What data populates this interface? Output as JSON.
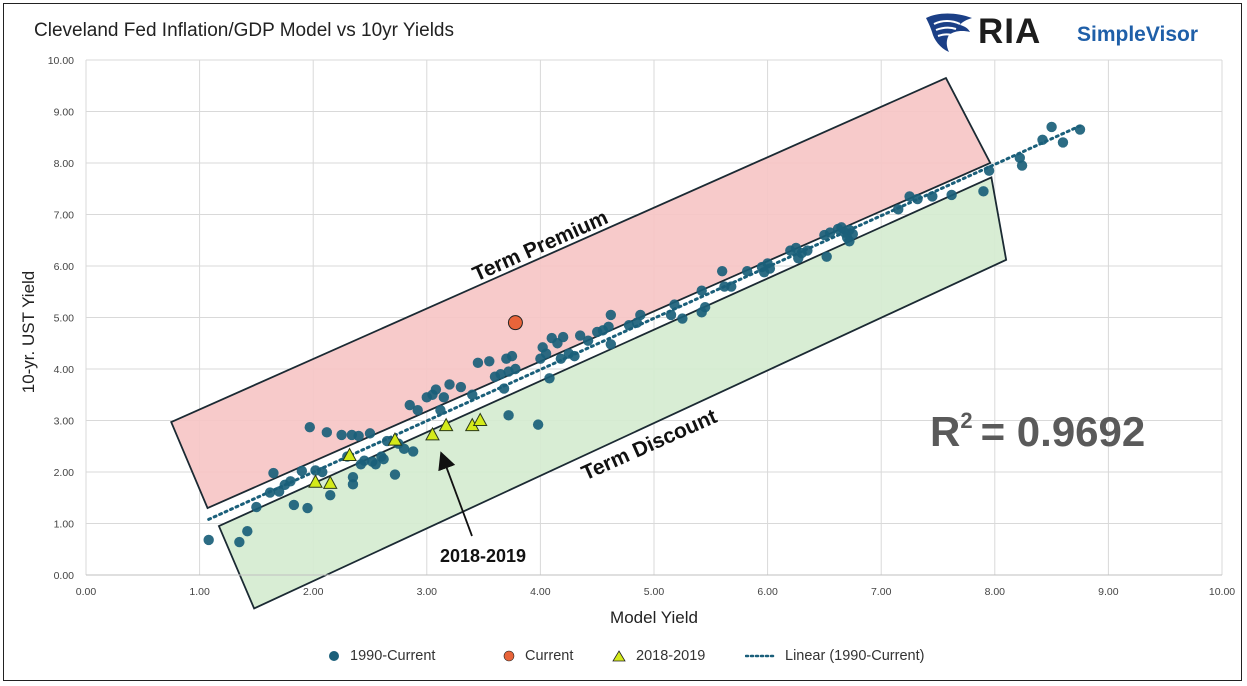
{
  "title": "Cleveland Fed Inflation/GDP Model vs 10yr Yields",
  "logo": {
    "primary": "RIA",
    "secondary": "SimpleVisor"
  },
  "colors": {
    "series_1990": "#1a5f7a",
    "current": "#e8643a",
    "series_2018": "#d4ea1a",
    "trend": "#1a5f7a",
    "term_premium_fill": "#f6c6c6",
    "term_discount_fill": "#d5ecd0",
    "zone_stroke": "#1b2a33",
    "grid": "#d9d9d9"
  },
  "annotations": {
    "term_premium": "Term Premium",
    "term_discount": "Term Discount",
    "period_label": "2018-2019",
    "r2_prefix": "R",
    "r2_exp": "2",
    "r2_value": "= 0.9692"
  },
  "chart_data": {
    "type": "scatter",
    "xlabel": "Model Yield",
    "ylabel": "10-yr. UST Yield",
    "xlim": [
      0,
      10
    ],
    "ylim": [
      0,
      10
    ],
    "x_ticks": [
      "0.00",
      "1.00",
      "2.00",
      "3.00",
      "4.00",
      "5.00",
      "6.00",
      "7.00",
      "8.00",
      "9.00",
      "10.00"
    ],
    "y_ticks": [
      "0.00",
      "1.00",
      "2.00",
      "3.00",
      "4.00",
      "5.00",
      "6.00",
      "7.00",
      "8.00",
      "9.00",
      "10.00"
    ],
    "grid": true,
    "legend_position": "bottom",
    "series": [
      {
        "name": "1990-Current",
        "marker": "circle",
        "points": [
          [
            1.08,
            0.68
          ],
          [
            1.35,
            0.64
          ],
          [
            1.42,
            0.85
          ],
          [
            1.5,
            1.32
          ],
          [
            1.62,
            1.6
          ],
          [
            1.65,
            1.98
          ],
          [
            1.7,
            1.62
          ],
          [
            1.75,
            1.75
          ],
          [
            1.8,
            1.82
          ],
          [
            1.83,
            1.36
          ],
          [
            1.9,
            2.02
          ],
          [
            1.95,
            1.3
          ],
          [
            1.97,
            2.87
          ],
          [
            2.02,
            2.03
          ],
          [
            2.08,
            2.0
          ],
          [
            2.12,
            2.77
          ],
          [
            2.15,
            1.55
          ],
          [
            2.25,
            2.72
          ],
          [
            2.3,
            2.3
          ],
          [
            2.34,
            2.72
          ],
          [
            2.35,
            1.76
          ],
          [
            2.35,
            1.9
          ],
          [
            2.4,
            2.7
          ],
          [
            2.42,
            2.15
          ],
          [
            2.45,
            2.22
          ],
          [
            2.5,
            2.75
          ],
          [
            2.52,
            2.2
          ],
          [
            2.55,
            2.15
          ],
          [
            2.6,
            2.3
          ],
          [
            2.62,
            2.25
          ],
          [
            2.65,
            2.6
          ],
          [
            2.72,
            1.95
          ],
          [
            2.75,
            2.55
          ],
          [
            2.8,
            2.45
          ],
          [
            2.85,
            3.3
          ],
          [
            2.88,
            2.4
          ],
          [
            2.92,
            3.2
          ],
          [
            3.0,
            3.45
          ],
          [
            3.05,
            3.5
          ],
          [
            3.08,
            3.6
          ],
          [
            3.12,
            3.2
          ],
          [
            3.15,
            3.45
          ],
          [
            3.2,
            3.7
          ],
          [
            3.3,
            3.65
          ],
          [
            3.4,
            3.5
          ],
          [
            3.45,
            4.12
          ],
          [
            3.55,
            4.15
          ],
          [
            3.6,
            3.85
          ],
          [
            3.65,
            3.9
          ],
          [
            3.7,
            4.2
          ],
          [
            3.72,
            3.95
          ],
          [
            3.75,
            4.25
          ],
          [
            3.78,
            4.0
          ],
          [
            3.72,
            3.1
          ],
          [
            3.68,
            3.62
          ],
          [
            3.98,
            2.92
          ],
          [
            4.0,
            4.2
          ],
          [
            4.02,
            4.42
          ],
          [
            4.05,
            4.3
          ],
          [
            4.08,
            3.82
          ],
          [
            4.1,
            4.6
          ],
          [
            4.15,
            4.5
          ],
          [
            4.18,
            4.2
          ],
          [
            4.2,
            4.62
          ],
          [
            4.25,
            4.3
          ],
          [
            4.3,
            4.25
          ],
          [
            4.35,
            4.65
          ],
          [
            4.42,
            4.55
          ],
          [
            4.5,
            4.72
          ],
          [
            4.55,
            4.75
          ],
          [
            4.6,
            4.82
          ],
          [
            4.62,
            5.05
          ],
          [
            4.62,
            4.48
          ],
          [
            4.78,
            4.85
          ],
          [
            4.85,
            4.9
          ],
          [
            4.88,
            5.05
          ],
          [
            5.15,
            5.05
          ],
          [
            5.18,
            5.25
          ],
          [
            5.25,
            4.98
          ],
          [
            5.42,
            5.1
          ],
          [
            5.45,
            5.2
          ],
          [
            5.42,
            5.52
          ],
          [
            5.6,
            5.9
          ],
          [
            5.62,
            5.6
          ],
          [
            5.68,
            5.6
          ],
          [
            5.82,
            5.9
          ],
          [
            5.95,
            5.98
          ],
          [
            5.97,
            5.88
          ],
          [
            6.0,
            6.05
          ],
          [
            6.02,
            5.95
          ],
          [
            6.2,
            6.3
          ],
          [
            6.25,
            6.35
          ],
          [
            6.27,
            6.15
          ],
          [
            6.3,
            6.25
          ],
          [
            6.35,
            6.3
          ],
          [
            6.5,
            6.6
          ],
          [
            6.52,
            6.18
          ],
          [
            6.55,
            6.65
          ],
          [
            6.62,
            6.72
          ],
          [
            6.65,
            6.75
          ],
          [
            6.68,
            6.65
          ],
          [
            6.7,
            6.55
          ],
          [
            6.72,
            6.7
          ],
          [
            6.75,
            6.62
          ],
          [
            6.72,
            6.48
          ],
          [
            7.15,
            7.1
          ],
          [
            7.25,
            7.35
          ],
          [
            7.32,
            7.3
          ],
          [
            7.45,
            7.35
          ],
          [
            7.62,
            7.38
          ],
          [
            7.9,
            7.45
          ],
          [
            7.95,
            7.85
          ],
          [
            8.22,
            8.1
          ],
          [
            8.24,
            7.95
          ],
          [
            8.42,
            8.45
          ],
          [
            8.5,
            8.7
          ],
          [
            8.6,
            8.4
          ],
          [
            8.75,
            8.65
          ]
        ]
      },
      {
        "name": "Current",
        "marker": "circle",
        "points": [
          [
            3.78,
            4.9
          ]
        ]
      },
      {
        "name": "2018-2019",
        "marker": "triangle",
        "points": [
          [
            2.02,
            1.8
          ],
          [
            2.15,
            1.78
          ],
          [
            2.32,
            2.32
          ],
          [
            2.72,
            2.62
          ],
          [
            3.05,
            2.72
          ],
          [
            3.17,
            2.9
          ],
          [
            3.4,
            2.9
          ],
          [
            3.47,
            3.0
          ]
        ]
      },
      {
        "name": "Linear (1990-Current)",
        "marker": "line",
        "points": [
          [
            1.08,
            1.08
          ],
          [
            8.75,
            8.72
          ]
        ]
      }
    ],
    "zones": [
      {
        "name": "Term Premium",
        "points": [
          [
            0.75,
            2.97
          ],
          [
            1.07,
            1.3
          ],
          [
            7.96,
            8.0
          ],
          [
            7.57,
            9.65
          ]
        ]
      },
      {
        "name": "Term Discount",
        "points": [
          [
            1.17,
            0.95
          ],
          [
            1.48,
            -0.65
          ],
          [
            8.1,
            6.12
          ],
          [
            7.97,
            7.72
          ]
        ]
      }
    ]
  }
}
